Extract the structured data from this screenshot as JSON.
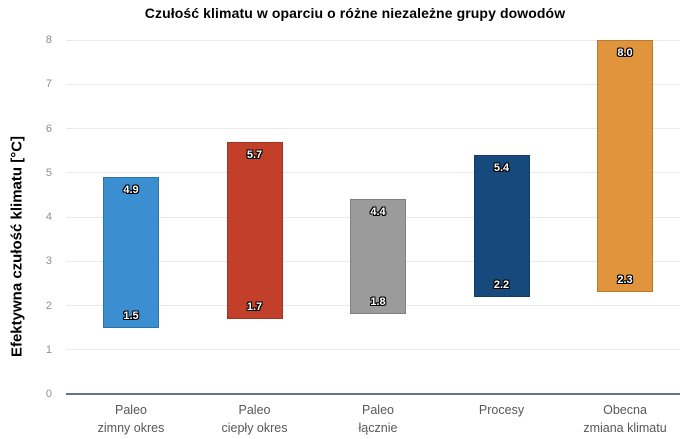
{
  "chart_data": {
    "type": "bar",
    "subtype": "floating-range-bar",
    "title": "Czułość klimatu w oparciu o różne niezależne grupy dowodów",
    "ylabel": "Efektywna czułość klimatu [°C]",
    "xlabel": "",
    "ylim": [
      0,
      8
    ],
    "yticks": [
      0,
      1,
      2,
      3,
      4,
      5,
      6,
      7,
      8
    ],
    "grid": true,
    "legend": false,
    "categories": [
      "Paleo zimny okres",
      "Paleo ciepły okres",
      "Paleo łącznie",
      "Procesy",
      "Obecna zmiana klimatu"
    ],
    "series": [
      {
        "category": "Paleo zimny okres",
        "label_lines": [
          "Paleo",
          "zimny okres"
        ],
        "low": 1.5,
        "high": 4.9,
        "color": "#3b8fd0"
      },
      {
        "category": "Paleo ciepły okres",
        "label_lines": [
          "Paleo",
          "ciepły okres"
        ],
        "low": 1.7,
        "high": 5.7,
        "color": "#c2402a"
      },
      {
        "category": "Paleo łącznie",
        "label_lines": [
          "Paleo",
          "łącznie"
        ],
        "low": 1.8,
        "high": 4.4,
        "color": "#9b9b9b"
      },
      {
        "category": "Procesy",
        "label_lines": [
          "Procesy"
        ],
        "low": 2.2,
        "high": 5.4,
        "color": "#164a7c"
      },
      {
        "category": "Obecna zmiana klimatu",
        "label_lines": [
          "Obecna",
          "zmiana klimatu"
        ],
        "low": 2.3,
        "high": 8.0,
        "color": "#e0953d"
      }
    ]
  },
  "colors": {
    "background": "#ffffff",
    "gridline": "#e9e9e9",
    "axis_line": "#64748c",
    "tick_label": "#8f8f8f",
    "category_label": "#585858",
    "value_label_text": "#ffffff",
    "title_text": "#000000"
  }
}
